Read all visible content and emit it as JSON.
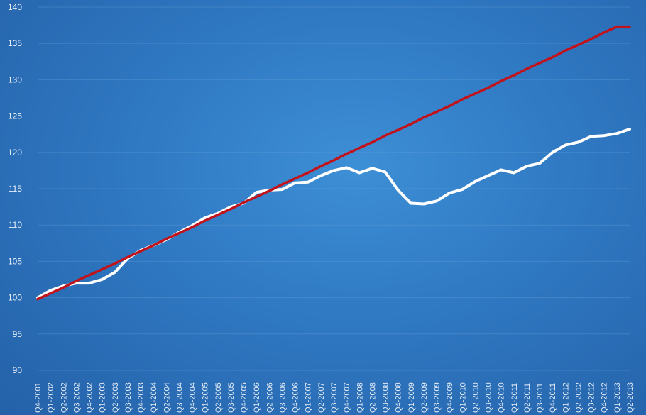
{
  "chart_data": {
    "type": "line",
    "title": "",
    "xlabel": "",
    "ylabel": "",
    "ylim": [
      90,
      140
    ],
    "yticks": [
      90,
      95,
      100,
      105,
      110,
      115,
      120,
      125,
      130,
      135,
      140
    ],
    "grid": true,
    "legend": "none",
    "categories": [
      "Q4-2001",
      "Q1-2002",
      "Q2-2002",
      "Q3-2002",
      "Q4-2002",
      "Q1-2003",
      "Q2-2003",
      "Q3-2003",
      "Q4-2003",
      "Q1-2004",
      "Q2-2004",
      "Q3-2004",
      "Q4-2004",
      "Q1-2005",
      "Q2-2005",
      "Q3-2005",
      "Q4-2005",
      "Q1-2006",
      "Q2-2006",
      "Q3-2006",
      "Q4-2006",
      "Q1-2007",
      "Q2-2007",
      "Q3-2007",
      "Q4-2007",
      "Q1-2008",
      "Q2-2008",
      "Q3-2008",
      "Q4-2008",
      "Q1-2009",
      "Q2-2009",
      "Q3-2009",
      "Q4-2009",
      "Q1-2010",
      "Q2-2010",
      "Q3-2010",
      "Q4-2010",
      "Q1-2011",
      "Q2-2011",
      "Q3-2011",
      "Q4-2011",
      "Q1-2012",
      "Q2-2012",
      "Q3-2012",
      "Q4-2012",
      "Q1-2013",
      "Q2-2013"
    ],
    "series": [
      {
        "color": "#ffffff",
        "values": [
          100.0,
          101.0,
          101.6,
          102.0,
          102.0,
          102.5,
          103.5,
          105.4,
          106.5,
          107.2,
          108.0,
          109.0,
          109.9,
          111.0,
          111.6,
          112.5,
          113.0,
          114.5,
          114.8,
          114.9,
          115.8,
          115.9,
          116.8,
          117.5,
          117.9,
          117.2,
          117.8,
          117.3,
          114.8,
          113.0,
          112.9,
          113.3,
          114.4,
          114.9,
          116.0,
          116.8,
          117.6,
          117.2,
          118.1,
          118.5,
          120.0,
          121.0,
          121.4,
          122.2,
          122.3,
          122.6,
          123.2
        ]
      },
      {
        "color": "#c0131b",
        "values": [
          99.8,
          100.6,
          101.4,
          102.3,
          103.1,
          103.9,
          104.7,
          105.6,
          106.4,
          107.2,
          108.1,
          108.9,
          109.7,
          110.6,
          111.4,
          112.2,
          113.1,
          113.9,
          114.7,
          115.6,
          116.4,
          117.2,
          118.1,
          118.9,
          119.8,
          120.6,
          121.4,
          122.3,
          123.1,
          123.9,
          124.8,
          125.6,
          126.4,
          127.3,
          128.1,
          128.9,
          129.8,
          130.6,
          131.5,
          132.3,
          133.1,
          134.0,
          134.8,
          135.6,
          136.5,
          137.3,
          137.3
        ]
      }
    ]
  }
}
